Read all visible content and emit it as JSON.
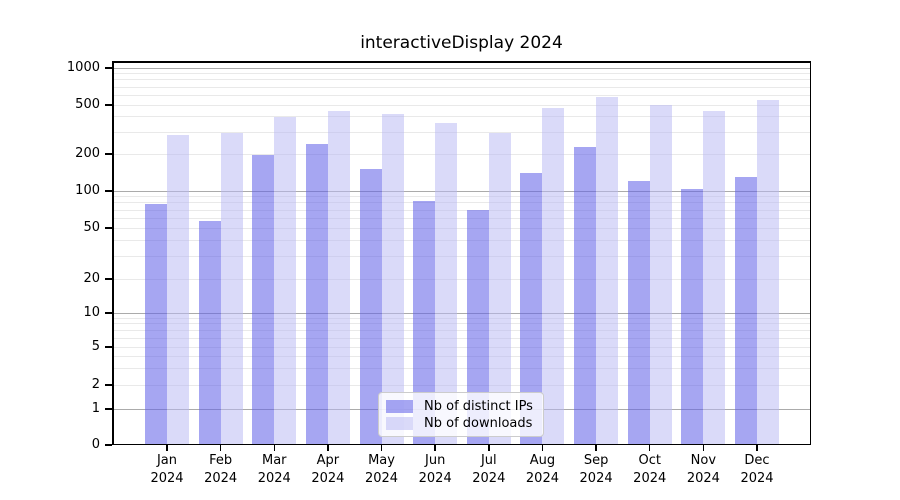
{
  "title": "interactiveDisplay 2024",
  "legend": {
    "items": [
      {
        "label": "Nb of distinct IPs",
        "series": "ips"
      },
      {
        "label": "Nb of downloads",
        "series": "downloads"
      }
    ]
  },
  "y_axis": {
    "tick_labels": [
      "0",
      "1",
      "2",
      "5",
      "10",
      "20",
      "50",
      "100",
      "200",
      "500",
      "1000"
    ]
  },
  "x_axis": {
    "year": "2024",
    "months": [
      "Jan",
      "Feb",
      "Mar",
      "Apr",
      "May",
      "Jun",
      "Jul",
      "Aug",
      "Sep",
      "Oct",
      "Nov",
      "Dec"
    ]
  },
  "colors": {
    "ips_bar": "rgba(96,96,232,0.56)",
    "downloads_bar": "rgba(185,185,243,0.52)",
    "major_gridline": "#ababab",
    "minor_gridline": "#e9e9e9",
    "axis_line": "#000000",
    "legend_border": "#cccccc",
    "legend_background": "rgba(255,255,255,0.8)"
  },
  "chart_data": {
    "type": "bar",
    "title": "interactiveDisplay 2024",
    "categories": [
      "Jan 2024",
      "Feb 2024",
      "Mar 2024",
      "Apr 2024",
      "May 2024",
      "Jun 2024",
      "Jul 2024",
      "Aug 2024",
      "Sep 2024",
      "Oct 2024",
      "Nov 2024",
      "Dec 2024"
    ],
    "series": [
      {
        "name": "Nb of distinct IPs",
        "values": [
          78,
          57,
          198,
          240,
          150,
          83,
          70,
          140,
          228,
          120,
          104,
          131
        ]
      },
      {
        "name": "Nb of downloads",
        "values": [
          285,
          295,
          400,
          450,
          420,
          355,
          295,
          470,
          585,
          500,
          445,
          550
        ]
      }
    ],
    "yscale": "logarithmic with zero baseline",
    "y_ticks": [
      0,
      1,
      2,
      5,
      10,
      20,
      50,
      100,
      200,
      500,
      1000
    ],
    "ylim": [
      0,
      1000
    ],
    "xlabel": "",
    "ylabel": "",
    "grid": "horizontal: major lines at decades (1,10,100,1000), faint minor lines at log subdivisions",
    "legend_position": "lower center"
  }
}
